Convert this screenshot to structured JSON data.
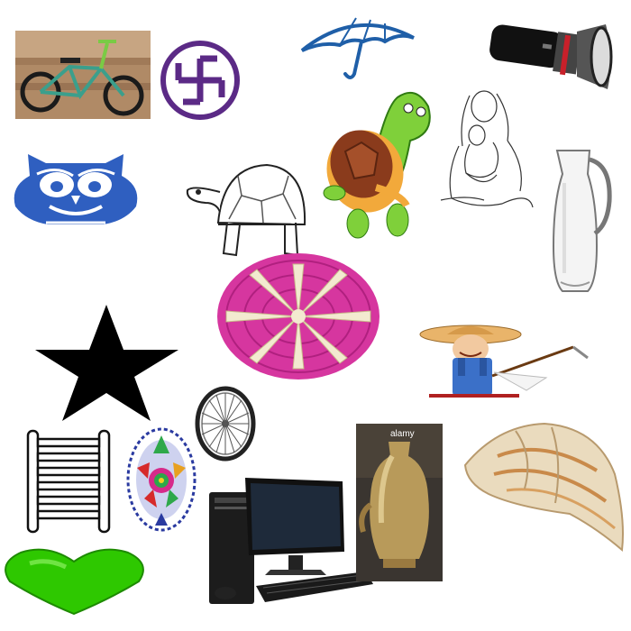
{
  "image": {
    "items": [
      {
        "name": "bicycle"
      },
      {
        "name": "swastika-symbol",
        "color": "#5b2a86"
      },
      {
        "name": "umbrella",
        "color": "#1f5fa8"
      },
      {
        "name": "flashlight"
      },
      {
        "name": "owl",
        "color": "#2f5fc0"
      },
      {
        "name": "tortoise-outline"
      },
      {
        "name": "cartoon-turtle"
      },
      {
        "name": "mother-and-child-sketch"
      },
      {
        "name": "glass-jug"
      },
      {
        "name": "woven-mat",
        "color": "#d6369f"
      },
      {
        "name": "star",
        "color": "#000000"
      },
      {
        "name": "farmer-with-hoe"
      },
      {
        "name": "wheel"
      },
      {
        "name": "ladder"
      },
      {
        "name": "rangoli"
      },
      {
        "name": "desktop-computer"
      },
      {
        "name": "brass-pot"
      },
      {
        "name": "conch-shell"
      },
      {
        "name": "heart",
        "color": "#2ec800"
      }
    ],
    "watermark_text": "alamy"
  }
}
